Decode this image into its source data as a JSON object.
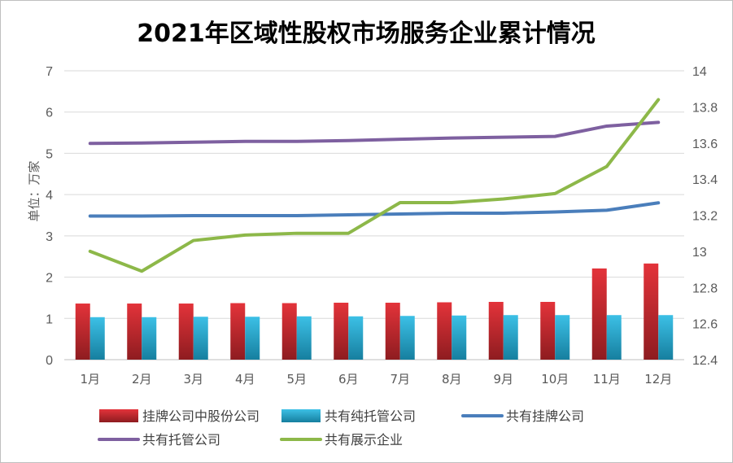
{
  "chart_data": {
    "type": "bar+line",
    "title": "2021年区域性股权市场服务企业累计情况",
    "ylabel": "单位：万家",
    "categories": [
      "1月",
      "2月",
      "3月",
      "4月",
      "5月",
      "6月",
      "7月",
      "8月",
      "9月",
      "10月",
      "11月",
      "12月"
    ],
    "left_axis": {
      "min": 0,
      "max": 7,
      "ticks": [
        "0",
        "1",
        "2",
        "3",
        "4",
        "5",
        "6",
        "7"
      ]
    },
    "right_axis": {
      "min": 12.4,
      "max": 14,
      "ticks": [
        "12.4",
        "12.6",
        "12.8",
        "13",
        "13.2",
        "13.4",
        "13.6",
        "13.8",
        "14"
      ]
    },
    "series": [
      {
        "name": "挂牌公司中股份公司",
        "type": "bar",
        "axis": "left",
        "color": "#c0272d",
        "values": [
          1.36,
          1.36,
          1.36,
          1.37,
          1.37,
          1.38,
          1.38,
          1.39,
          1.4,
          1.4,
          2.21,
          2.33
        ]
      },
      {
        "name": "共有纯托管公司",
        "type": "bar",
        "axis": "left",
        "color": "#1f9fc7",
        "values": [
          1.03,
          1.03,
          1.04,
          1.04,
          1.05,
          1.05,
          1.06,
          1.07,
          1.08,
          1.08,
          1.08,
          1.08
        ]
      },
      {
        "name": "共有挂牌公司",
        "type": "line",
        "axis": "left",
        "color": "#4a7ebb",
        "values": [
          3.48,
          3.48,
          3.49,
          3.49,
          3.49,
          3.51,
          3.53,
          3.55,
          3.55,
          3.58,
          3.62,
          3.8
        ]
      },
      {
        "name": "共有托管公司",
        "type": "line",
        "axis": "left",
        "color": "#7e60a0",
        "values": [
          5.24,
          5.25,
          5.27,
          5.29,
          5.29,
          5.31,
          5.34,
          5.37,
          5.39,
          5.41,
          5.66,
          5.75
        ]
      },
      {
        "name": "共有展示企业",
        "type": "line",
        "axis": "right",
        "color": "#8db849",
        "values": [
          13.0,
          12.89,
          13.06,
          13.09,
          13.1,
          13.1,
          13.27,
          13.27,
          13.29,
          13.32,
          13.47,
          13.84
        ]
      }
    ],
    "legend": "bottom"
  }
}
